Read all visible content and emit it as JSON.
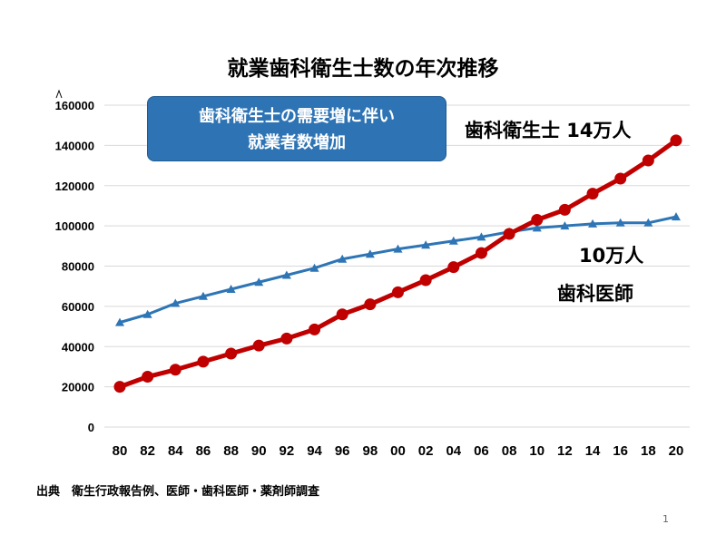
{
  "page": {
    "title": "就業歯科衛生士数の年次推移",
    "source": "出典　衛生行政報告例、医師・歯科医師・薬剤師調査",
    "page_number": "1"
  },
  "callout": {
    "line1": "歯科衛生士の需要増に伴い",
    "line2": "就業者数増加"
  },
  "labels": {
    "hygienist": "歯科衛生士  14万人",
    "dentist_count": "10万人",
    "dentist": "歯科医師"
  },
  "chart_data": {
    "type": "line",
    "title": "就業歯科衛生士数の年次推移",
    "xlabel": "",
    "ylabel": "",
    "categories": [
      "80",
      "82",
      "84",
      "86",
      "88",
      "90",
      "92",
      "94",
      "96",
      "98",
      "00",
      "02",
      "04",
      "06",
      "08",
      "10",
      "12",
      "14",
      "16",
      "18",
      "20"
    ],
    "yticks": [
      "0",
      "20000",
      "40000",
      "60000",
      "80000",
      "100000",
      "120000",
      "140000",
      "160000"
    ],
    "ylim": [
      0,
      160000
    ],
    "grid": true,
    "series": [
      {
        "name": "歯科医師",
        "color": "#2e75b6",
        "marker": "triangle",
        "values": [
          52000,
          56000,
          61500,
          65000,
          68500,
          72000,
          75500,
          79000,
          83500,
          86000,
          88500,
          90500,
          92500,
          94500,
          97000,
          99000,
          100000,
          101000,
          101500,
          101500,
          104500
        ]
      },
      {
        "name": "歯科衛生士",
        "color": "#c00000",
        "marker": "circle",
        "values": [
          20000,
          25000,
          28500,
          32500,
          36500,
          40500,
          44000,
          48500,
          56000,
          61000,
          67000,
          73000,
          79500,
          86500,
          96000,
          103000,
          108000,
          116000,
          123500,
          132500,
          142500
        ]
      }
    ]
  }
}
